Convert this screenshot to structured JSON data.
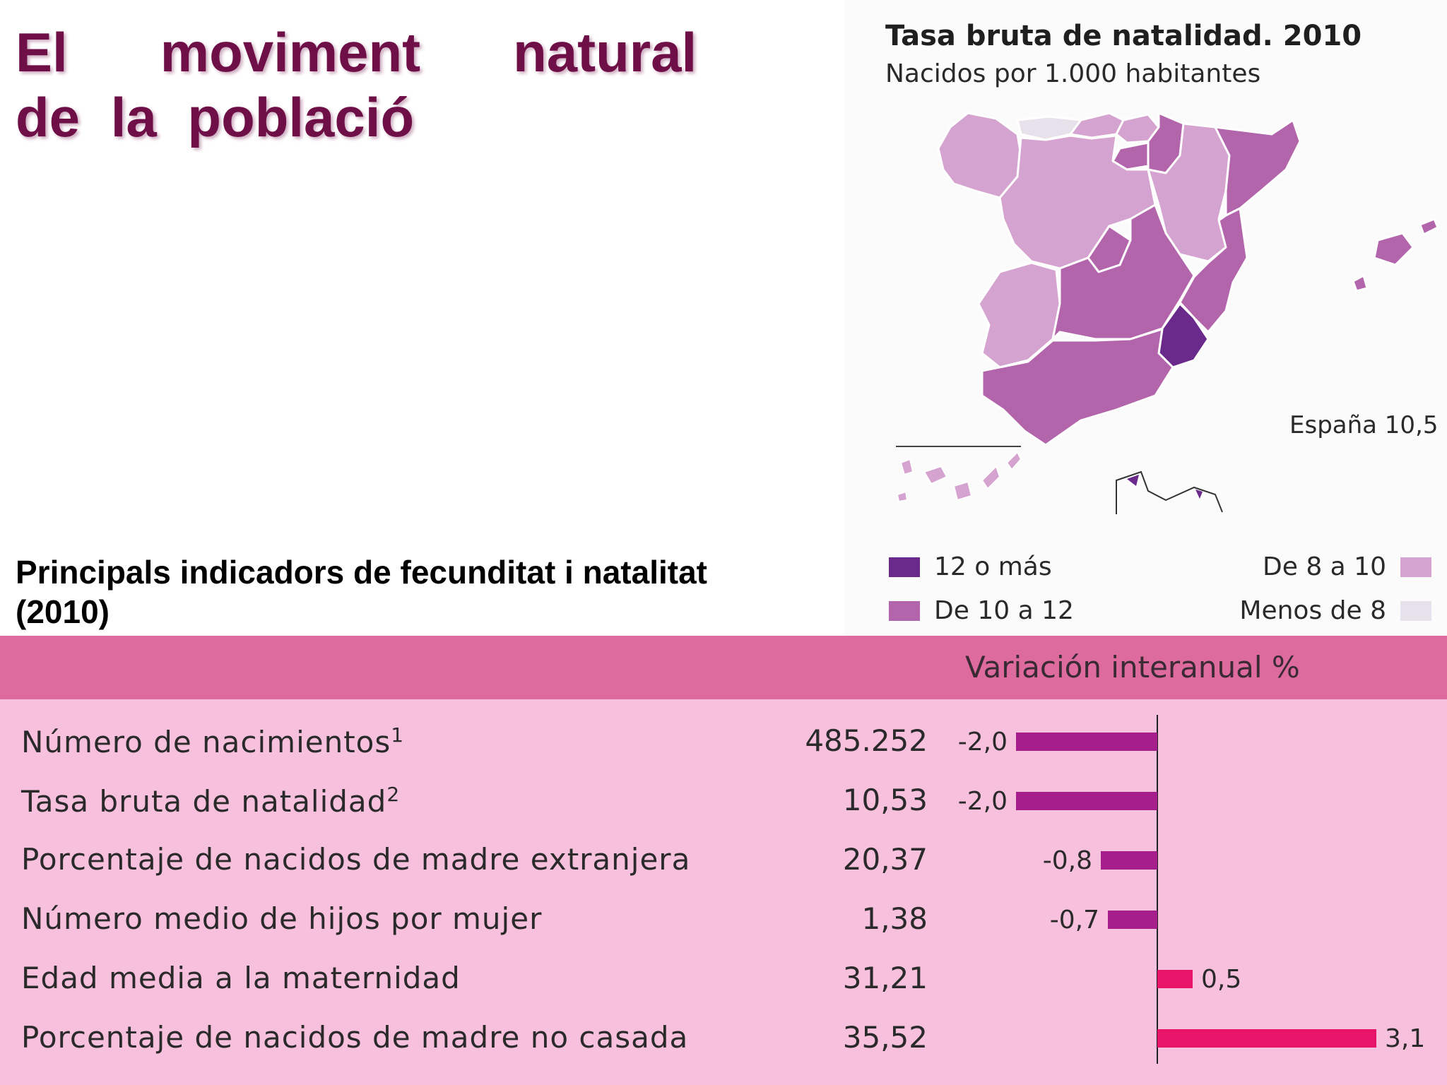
{
  "page": {
    "title_lines": [
      "El   moviment   natural",
      "de la població"
    ],
    "subtitle_lines": [
      "Principals indicadors de fecunditat i natalitat",
      "(2010)"
    ]
  },
  "map": {
    "title": "Tasa bruta de natalidad. 2010",
    "subtitle": "Nacidos por 1.000 habitantes",
    "note": "España 10,5",
    "legend": [
      {
        "label": "12 o más",
        "color": "#6a2a8c"
      },
      {
        "label": "De 10 a 12",
        "color": "#b365ab"
      },
      {
        "label": "De 8 a 10",
        "color": "#d4a3cf"
      },
      {
        "label": "Menos de 8",
        "color": "#e6e1ea"
      }
    ],
    "colors": {
      "dark": "#6a2a8c",
      "mid": "#b365ab",
      "light": "#d4a3cf",
      "pale": "#e6e1ea"
    }
  },
  "table": {
    "header": "Variación interanual %",
    "colors": {
      "header_bg": "#dd6b9e",
      "panel_bg": "#f7c0dc",
      "negative_bar": "#a61e8c",
      "positive_bar": "#e8146a"
    }
  },
  "chart_data": {
    "type": "bar",
    "orientation": "horizontal",
    "title": "Variación interanual %",
    "categories": [
      "Número de nacimientos",
      "Tasa bruta de natalidad",
      "Porcentaje de nacidos de madre extranjera",
      "Número medio de hijos por mujer",
      "Edad media a la maternidad",
      "Porcentaje de nacidos de madre no casada"
    ],
    "footnote_marks": [
      "1",
      "2",
      "",
      "",
      "",
      ""
    ],
    "values_2010": [
      "485.252",
      "10,53",
      "20,37",
      "1,38",
      "31,21",
      "35,52"
    ],
    "values": [
      -2.0,
      -2.0,
      -0.8,
      -0.7,
      0.5,
      3.1
    ],
    "value_labels": [
      "-2,0",
      "-2,0",
      "-0,8",
      "-0,7",
      "0,5",
      "3,1"
    ],
    "xlim": [
      -2.0,
      3.1
    ],
    "grid": false,
    "legend": "none"
  }
}
